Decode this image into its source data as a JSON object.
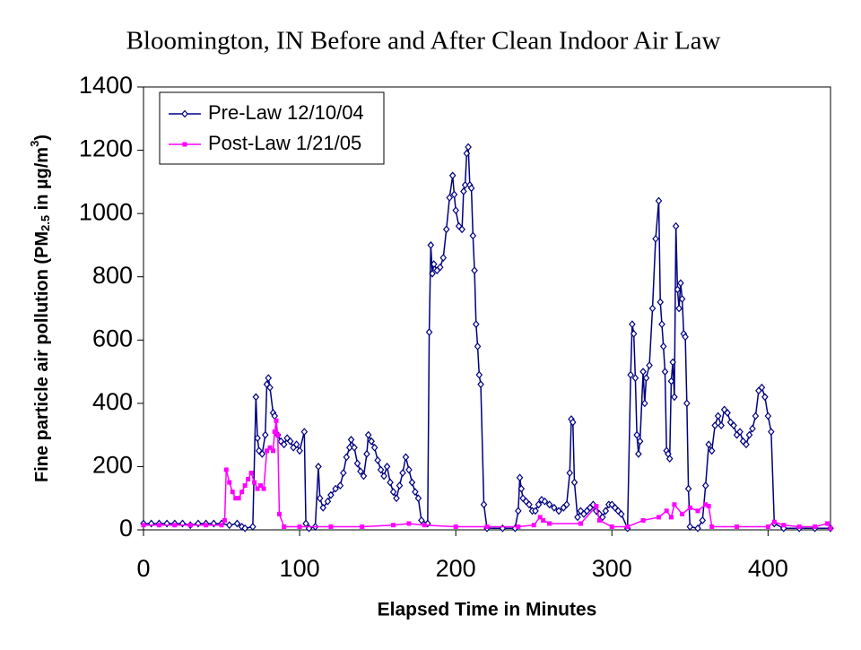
{
  "chart_data": {
    "type": "line",
    "title": "Bloomington, IN Before and After Clean Indoor Air Law",
    "x_label": "Elapsed Time in Minutes",
    "y_label": [
      "Fine particle air pollution (PM",
      "2.5",
      " in µg/m",
      "3",
      ")"
    ],
    "xlim": [
      0,
      440
    ],
    "xticks": [
      0,
      100,
      200,
      300,
      400
    ],
    "ylim": [
      0,
      1400
    ],
    "yticks": [
      0,
      200,
      400,
      600,
      800,
      1000,
      1200,
      1400
    ],
    "legend": "top-left",
    "series": [
      {
        "name": "Pre-Law 12/10/04",
        "color": "#000080",
        "marker": "diamond",
        "x": [
          0,
          5,
          10,
          15,
          20,
          25,
          30,
          35,
          40,
          45,
          50,
          55,
          60,
          63,
          65,
          70,
          72,
          73,
          74,
          76,
          78,
          79,
          80,
          81,
          83,
          84,
          86,
          88,
          90,
          92,
          94,
          96,
          98,
          100,
          103,
          104,
          106,
          110,
          112,
          113,
          115,
          118,
          120,
          123,
          126,
          128,
          130,
          132,
          133,
          135,
          137,
          139,
          141,
          143,
          144,
          146,
          148,
          150,
          152,
          154,
          156,
          158,
          160,
          162,
          164,
          166,
          168,
          170,
          172,
          174,
          176,
          178,
          182,
          183,
          184,
          185,
          186,
          188,
          190,
          192,
          194,
          196,
          198,
          199,
          200,
          202,
          204,
          205,
          206,
          207,
          208,
          209,
          210,
          211,
          212,
          213,
          214,
          215,
          216,
          218,
          220,
          230,
          238,
          240,
          241,
          242,
          243,
          245,
          247,
          249,
          251,
          253,
          255,
          257,
          260,
          263,
          266,
          269,
          271,
          273,
          274,
          275,
          276,
          278,
          280,
          282,
          284,
          286,
          288,
          290,
          292,
          294,
          296,
          298,
          300,
          302,
          304,
          306,
          310,
          312,
          313,
          314,
          315,
          316,
          317,
          318,
          320,
          321,
          322,
          324,
          326,
          328,
          330,
          331,
          332,
          333,
          334,
          335,
          336,
          337,
          338,
          339,
          340,
          341,
          342,
          343,
          344,
          345,
          346,
          347,
          348,
          349,
          350,
          355,
          358,
          360,
          362,
          364,
          366,
          368,
          370,
          372,
          374,
          376,
          378,
          380,
          382,
          384,
          386,
          388,
          390,
          392,
          394,
          396,
          398,
          400,
          402,
          404,
          410,
          420,
          430,
          440
        ],
        "values": [
          20,
          20,
          20,
          20,
          20,
          20,
          15,
          20,
          20,
          20,
          20,
          15,
          20,
          10,
          5,
          10,
          420,
          290,
          250,
          240,
          300,
          460,
          480,
          450,
          370,
          360,
          300,
          280,
          270,
          290,
          280,
          260,
          270,
          250,
          310,
          20,
          5,
          10,
          200,
          100,
          70,
          90,
          110,
          130,
          140,
          180,
          230,
          260,
          285,
          260,
          210,
          185,
          170,
          240,
          300,
          280,
          260,
          220,
          190,
          170,
          200,
          150,
          120,
          100,
          140,
          180,
          230,
          190,
          150,
          120,
          100,
          30,
          20,
          625,
          900,
          810,
          840,
          820,
          830,
          860,
          950,
          1050,
          1120,
          1060,
          1010,
          960,
          950,
          1070,
          1090,
          1190,
          1210,
          1090,
          1080,
          930,
          820,
          650,
          580,
          490,
          460,
          80,
          5,
          5,
          5,
          60,
          165,
          130,
          100,
          90,
          80,
          60,
          60,
          80,
          95,
          90,
          80,
          70,
          60,
          70,
          80,
          180,
          350,
          340,
          150,
          40,
          60,
          50,
          60,
          70,
          80,
          60,
          50,
          40,
          60,
          80,
          80,
          70,
          60,
          50,
          5,
          490,
          650,
          620,
          480,
          300,
          240,
          280,
          500,
          400,
          480,
          520,
          700,
          920,
          1040,
          720,
          650,
          580,
          500,
          250,
          240,
          225,
          470,
          530,
          420,
          960,
          760,
          700,
          780,
          730,
          620,
          610,
          400,
          130,
          10,
          5,
          30,
          140,
          270,
          250,
          330,
          360,
          330,
          380,
          370,
          340,
          330,
          300,
          310,
          280,
          270,
          300,
          320,
          360,
          440,
          450,
          420,
          360,
          310,
          20,
          5,
          5,
          5,
          5
        ]
      },
      {
        "name": "Post-Law 1/21/05",
        "color": "#ff00ff",
        "marker": "square",
        "x": [
          0,
          10,
          20,
          30,
          40,
          50,
          52,
          53,
          55,
          57,
          59,
          61,
          63,
          65,
          67,
          69,
          71,
          73,
          75,
          77,
          79,
          81,
          83,
          84,
          85,
          86,
          87,
          90,
          100,
          120,
          140,
          160,
          170,
          180,
          200,
          220,
          240,
          250,
          254,
          256,
          260,
          280,
          290,
          292,
          300,
          310,
          320,
          330,
          335,
          338,
          340,
          345,
          350,
          355,
          360,
          362,
          364,
          380,
          400,
          404,
          410,
          420,
          430,
          438,
          440
        ],
        "values": [
          15,
          15,
          15,
          15,
          15,
          15,
          30,
          190,
          150,
          120,
          100,
          100,
          120,
          140,
          160,
          180,
          150,
          130,
          140,
          130,
          250,
          260,
          250,
          310,
          345,
          300,
          50,
          10,
          10,
          10,
          10,
          15,
          20,
          15,
          10,
          10,
          10,
          15,
          40,
          30,
          20,
          20,
          75,
          30,
          10,
          10,
          30,
          40,
          60,
          40,
          80,
          50,
          70,
          60,
          80,
          75,
          10,
          10,
          10,
          25,
          15,
          10,
          10,
          20,
          5
        ]
      }
    ]
  }
}
